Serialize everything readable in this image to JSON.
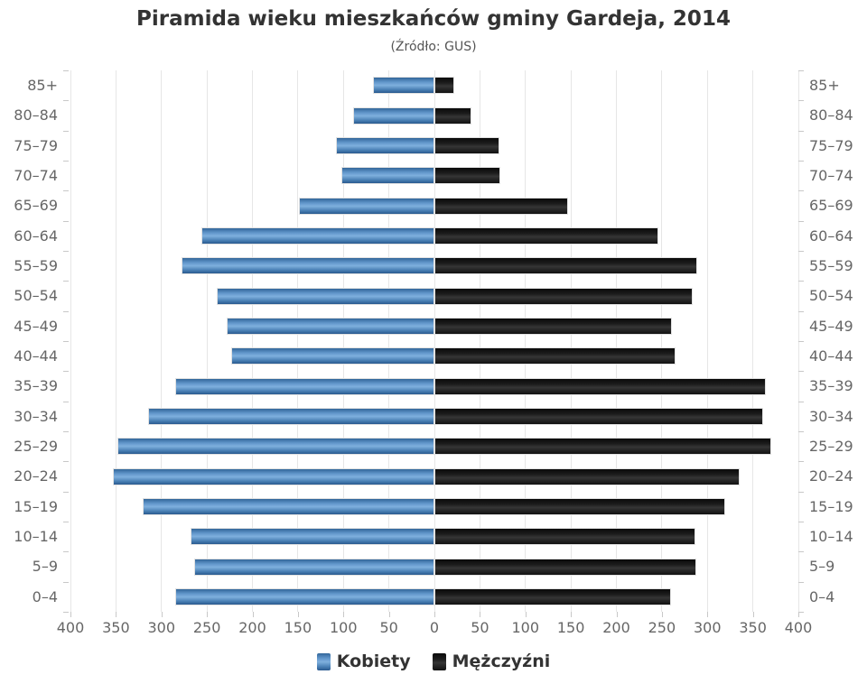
{
  "title": "Piramida wieku mieszkańców gminy Gardeja, 2014",
  "subtitle": "(Źródło: GUS)",
  "legend": {
    "items": [
      {
        "label": "Kobiety",
        "color": "#4f83b8"
      },
      {
        "label": "Mężczyźni",
        "color": "#1a1a1a"
      }
    ]
  },
  "chart_data": {
    "type": "bar",
    "variant": "population-pyramid",
    "title": "Piramida wieku mieszkańców gminy Gardeja, 2014",
    "subtitle": "(Źródło: GUS)",
    "categories": [
      "85+",
      "80–84",
      "75–79",
      "70–74",
      "65–69",
      "60–64",
      "55–59",
      "50–54",
      "45–49",
      "40–44",
      "35–39",
      "30–34",
      "25–29",
      "20–24",
      "15–19",
      "10–14",
      "5–9",
      "0–4"
    ],
    "series": [
      {
        "name": "Kobiety",
        "side": "left",
        "color": "#4f83b8",
        "values": [
          67,
          89,
          108,
          102,
          149,
          256,
          278,
          239,
          228,
          223,
          285,
          315,
          348,
          353,
          321,
          268,
          264,
          285
        ]
      },
      {
        "name": "Mężczyźni",
        "side": "right",
        "color": "#1a1a1a",
        "values": [
          22,
          41,
          71,
          72,
          147,
          246,
          289,
          284,
          261,
          265,
          364,
          361,
          370,
          335,
          320,
          287,
          288,
          260
        ]
      }
    ],
    "x_tick_labels": [
      "400",
      "350",
      "300",
      "250",
      "200",
      "150",
      "100",
      "50",
      "0",
      "50",
      "100",
      "150",
      "200",
      "250",
      "300",
      "350",
      "400"
    ],
    "xlim": [
      0,
      400
    ],
    "grid": true,
    "legend_position": "bottom"
  }
}
